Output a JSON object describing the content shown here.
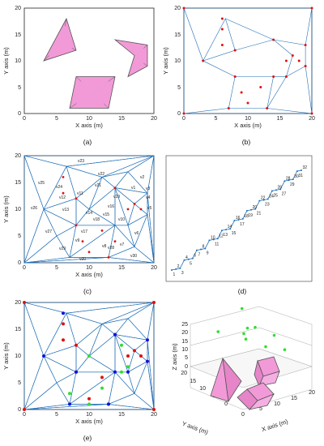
{
  "panels": {
    "a": {
      "caption": "(a)",
      "xlabel": "X axis (m)",
      "ylabel": "Y axis (m)",
      "xticks": [
        "0",
        "5",
        "10",
        "15",
        "20"
      ],
      "yticks": [
        "0",
        "5",
        "10",
        "15",
        "20"
      ]
    },
    "b": {
      "caption": "(b)",
      "xlabel": "X axis (m)",
      "ylabel": "Y axis (m)",
      "xticks": [
        "0",
        "5",
        "10",
        "15",
        "20"
      ],
      "yticks": [
        "0",
        "5",
        "10",
        "15",
        "20"
      ]
    },
    "c": {
      "caption": "(c)",
      "xlabel": "X axis (m)",
      "ylabel": "Y axis (m)",
      "xticks": [
        "0",
        "5",
        "10",
        "15",
        "20"
      ],
      "yticks": [
        "0",
        "5",
        "10",
        "15",
        "20"
      ],
      "labels": [
        "v23",
        "v22",
        "v2",
        "v25",
        "v24",
        "v26",
        "v21",
        "v1",
        "v3",
        "v19",
        "v11",
        "v12",
        "v13",
        "v16",
        "v14",
        "v4",
        "v15",
        "v5",
        "v6",
        "v27",
        "v17",
        "v10",
        "v18",
        "v9",
        "v8",
        "v28",
        "v7",
        "v29",
        "v20",
        "v30"
      ]
    },
    "d": {
      "caption": "(d)",
      "nodes": [
        "32",
        "30",
        "31",
        "29",
        "28",
        "27",
        "26",
        "25",
        "24",
        "23",
        "22",
        "21",
        "20",
        "19",
        "18",
        "17",
        "16",
        "15",
        "14",
        "13",
        "10",
        "12",
        "11",
        "9",
        "8",
        "7",
        "6",
        "5",
        "4",
        "3",
        "2",
        "1"
      ]
    },
    "e": {
      "caption": "(e)",
      "xlabel": "X axis (m)",
      "ylabel": "Y axis (m)",
      "xticks": [
        "0",
        "5",
        "10",
        "15",
        "20"
      ],
      "yticks": [
        "0",
        "5",
        "10",
        "15",
        "20"
      ]
    },
    "f": {
      "caption": "(f)",
      "xlabel": "X axis (m)",
      "ylabel": "Y axis (m)",
      "zlabel": "Z axis (m)",
      "xticks": [
        "0",
        "5",
        "10",
        "15",
        "20"
      ],
      "yticks": [
        "0",
        "5",
        "10",
        "15",
        "20"
      ],
      "zticks": [
        "0",
        "5",
        "10",
        "15",
        "20",
        "25"
      ]
    }
  },
  "colors": {
    "obstacle": "#f29ad8",
    "edge": "#1f6fb8",
    "red": "#e01010",
    "blue": "#1010e0",
    "green": "#33dd33"
  },
  "chart_data": [
    {
      "type": "scatter",
      "panel": "a",
      "title": "",
      "xlabel": "X axis (m)",
      "ylabel": "Y axis (m)",
      "xlim": [
        0,
        20
      ],
      "ylim": [
        0,
        20
      ],
      "obstacles": [
        [
          [
            6.5,
            18
          ],
          [
            3,
            10
          ],
          [
            8,
            12
          ]
        ],
        [
          [
            14,
            14
          ],
          [
            19,
            13
          ],
          [
            19,
            9
          ],
          [
            16,
            7
          ],
          [
            17,
            11
          ]
        ],
        [
          [
            8,
            7
          ],
          [
            14,
            7
          ],
          [
            13,
            1
          ],
          [
            7,
            1
          ]
        ]
      ]
    },
    {
      "type": "scatter",
      "panel": "b",
      "xlim": [
        0,
        20
      ],
      "ylim": [
        0,
        20
      ],
      "red_points": [
        [
          0,
          20
        ],
        [
          20,
          20
        ],
        [
          6,
          18
        ],
        [
          3,
          10
        ],
        [
          8,
          12
        ],
        [
          6,
          16
        ],
        [
          6,
          13
        ],
        [
          14,
          14
        ],
        [
          19,
          13
        ],
        [
          19,
          9
        ],
        [
          16,
          7
        ],
        [
          17,
          11
        ],
        [
          16,
          10
        ],
        [
          18,
          10
        ],
        [
          8,
          7
        ],
        [
          14,
          7
        ],
        [
          13,
          1
        ],
        [
          7,
          1
        ],
        [
          9,
          4
        ],
        [
          12,
          5
        ],
        [
          10,
          2
        ],
        [
          0,
          0
        ],
        [
          20,
          0
        ]
      ]
    },
    {
      "type": "scatter",
      "panel": "c",
      "xlim": [
        0,
        20
      ],
      "ylim": [
        0,
        20
      ],
      "red_points": [
        [
          8,
          12
        ],
        [
          6,
          13
        ],
        [
          6,
          16
        ],
        [
          14,
          14
        ],
        [
          17,
          11
        ],
        [
          16,
          10
        ],
        [
          18,
          10
        ],
        [
          12,
          6
        ],
        [
          13,
          1
        ],
        [
          8,
          7
        ],
        [
          9,
          4
        ],
        [
          10,
          2
        ],
        [
          14,
          4
        ]
      ]
    },
    {
      "type": "scatter",
      "panel": "d",
      "node_path": [
        1,
        2,
        3,
        4,
        5,
        6,
        7,
        8,
        9,
        10,
        11,
        12,
        13,
        14,
        15,
        16,
        17,
        18,
        19,
        20,
        21,
        22,
        23,
        24,
        25,
        26,
        27,
        28,
        29,
        30,
        31,
        32
      ]
    },
    {
      "type": "scatter",
      "panel": "e",
      "xlim": [
        0,
        20
      ],
      "ylim": [
        0,
        20
      ],
      "red_points": [
        [
          0,
          20
        ],
        [
          20,
          20
        ],
        [
          0,
          0
        ],
        [
          20,
          0
        ],
        [
          6,
          13
        ],
        [
          6,
          16
        ],
        [
          8,
          12
        ],
        [
          14,
          14
        ],
        [
          17,
          11
        ],
        [
          16,
          10
        ],
        [
          18,
          10
        ],
        [
          12,
          6
        ],
        [
          13,
          1
        ],
        [
          8,
          7
        ],
        [
          10,
          2
        ]
      ],
      "blue_points": [
        [
          6,
          18
        ],
        [
          3,
          10
        ],
        [
          8,
          7
        ],
        [
          14,
          7
        ],
        [
          13,
          1
        ],
        [
          7,
          1
        ],
        [
          19,
          13
        ],
        [
          19,
          9
        ],
        [
          16,
          7
        ],
        [
          14,
          14
        ]
      ],
      "green_points": [
        [
          10,
          10
        ],
        [
          16,
          8
        ],
        [
          15,
          7
        ],
        [
          12,
          4
        ],
        [
          10,
          1
        ],
        [
          15,
          12
        ],
        [
          7,
          3
        ]
      ]
    },
    {
      "type": "scatter",
      "panel": "f",
      "xlim": [
        0,
        20
      ],
      "ylim": [
        0,
        20
      ],
      "zlim": [
        0,
        25
      ],
      "green_points": [
        [
          15,
          20,
          25
        ],
        [
          12,
          14,
          19
        ],
        [
          5,
          16,
          20
        ],
        [
          15,
          15,
          17
        ],
        [
          10,
          12,
          15
        ],
        [
          14,
          18,
          12
        ],
        [
          15,
          11,
          8
        ],
        [
          19,
          13,
          11
        ],
        [
          19,
          9,
          5
        ]
      ]
    }
  ]
}
